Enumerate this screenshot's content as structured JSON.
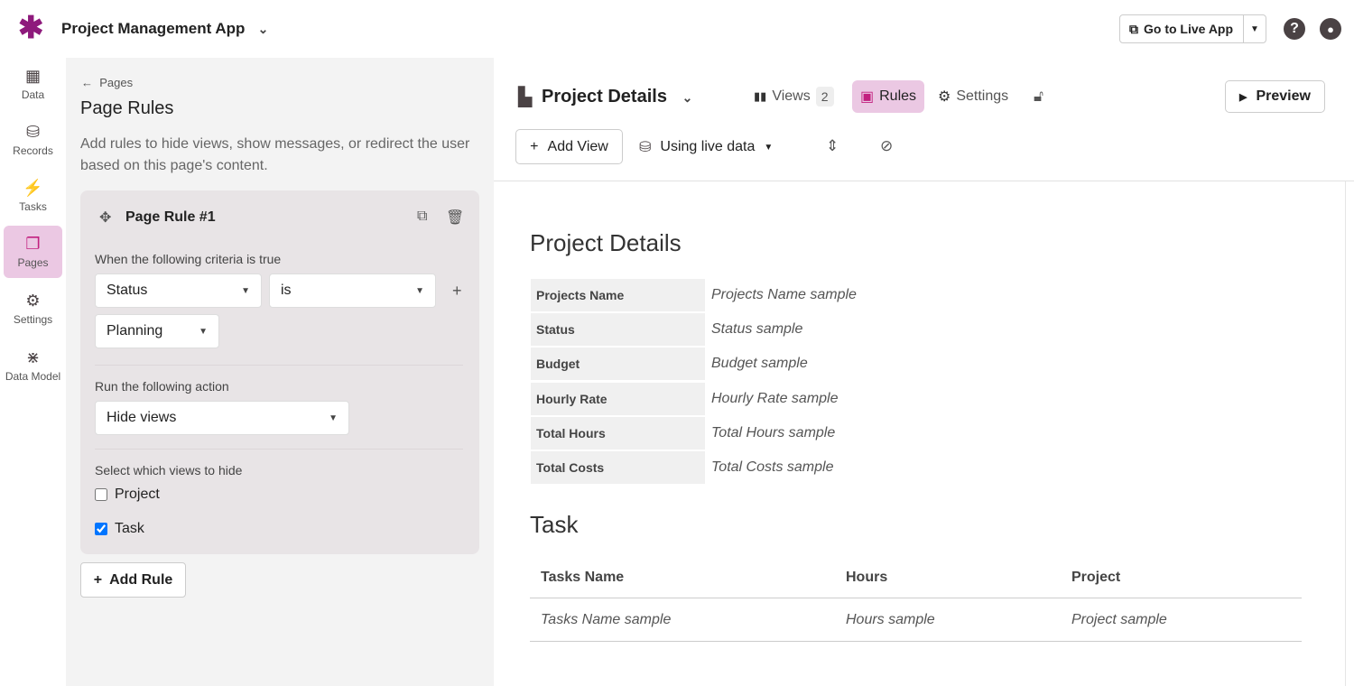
{
  "app": {
    "title": "Project Management App",
    "go_live": "Go to Live App",
    "accent": "#8e1a7c"
  },
  "nav": [
    {
      "label": "Data",
      "icon": "table-icon"
    },
    {
      "label": "Records",
      "icon": "database-icon"
    },
    {
      "label": "Tasks",
      "icon": "bolt-icon"
    },
    {
      "label": "Pages",
      "icon": "pages-icon",
      "active": true
    },
    {
      "label": "Settings",
      "icon": "gear-icon"
    },
    {
      "label": "Data Model",
      "icon": "data-model-icon"
    }
  ],
  "left": {
    "back": "Pages",
    "title": "Page Rules",
    "desc": "Add rules to hide views, show messages, or redirect the user based on this page's content.",
    "rule": {
      "title": "Page Rule #1",
      "criteria_label": "When the following criteria is true",
      "field": "Status",
      "operator": "is",
      "value": "Planning",
      "action_label": "Run the following action",
      "action": "Hide views",
      "views_label": "Select which views to hide",
      "views": [
        {
          "label": "Project",
          "checked": false
        },
        {
          "label": "Task",
          "checked": true
        }
      ]
    },
    "add_rule": "Add Rule"
  },
  "header": {
    "page": "Project Details",
    "tabs": {
      "views": "Views",
      "views_count": "2",
      "rules": "Rules",
      "settings": "Settings"
    },
    "preview": "Preview",
    "add_view": "Add View",
    "data_source": "Using live data"
  },
  "content": {
    "details_title": "Project Details",
    "fields": [
      {
        "k": "Projects Name",
        "v": "Projects Name sample"
      },
      {
        "k": "Status",
        "v": "Status sample"
      },
      {
        "k": "Budget",
        "v": "Budget sample"
      },
      {
        "k": "Hourly Rate",
        "v": "Hourly Rate sample"
      },
      {
        "k": "Total Hours",
        "v": "Total Hours sample"
      },
      {
        "k": "Total Costs",
        "v": "Total Costs sample"
      }
    ],
    "task_title": "Task",
    "columns": [
      "Tasks Name",
      "Hours",
      "Project"
    ],
    "row": [
      "Tasks Name sample",
      "Hours sample",
      "Project sample"
    ]
  }
}
